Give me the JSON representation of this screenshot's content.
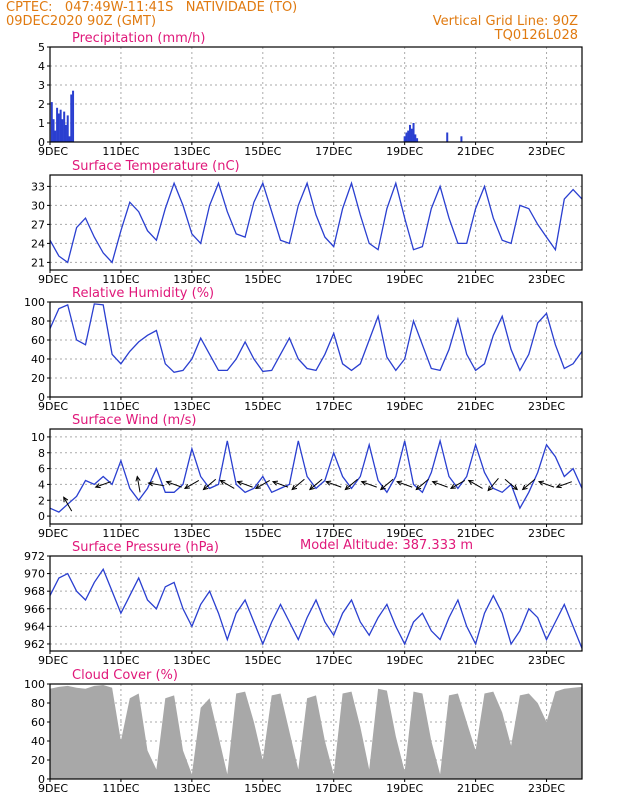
{
  "header": {
    "line1": "CPTEC:   047:49W-11:41S   NATIVIDADE (TO)",
    "line2": "09DEC2020 90Z (GMT)",
    "grid_note": "Vertical Grid Line: 90Z",
    "code": "TQ0126L028",
    "model_altitude": "Model Altitude: 387.333 m",
    "header_color": "#e07a10",
    "title_color": "#e0187a",
    "line_color": "#2a3fd0",
    "bar_color": "#2a3fd0",
    "cloud_color": "#a8a8a8"
  },
  "date_labels": [
    "9DEC",
    "11DEC",
    "13DEC",
    "15DEC",
    "17DEC",
    "19DEC",
    "21DEC",
    "23DEC"
  ],
  "chart_data": [
    {
      "id": "precipitation",
      "type": "bar",
      "title": "Precipitation (mm/h)",
      "ylim": [
        0,
        5
      ],
      "yticks": [
        0,
        1,
        2,
        3,
        4,
        5
      ],
      "xlabel": "",
      "ylabel": "",
      "grid": true,
      "points": [
        [
          0.05,
          2.1
        ],
        [
          0.1,
          1.2
        ],
        [
          0.15,
          0.6
        ],
        [
          0.2,
          1.8
        ],
        [
          0.25,
          1.5
        ],
        [
          0.3,
          1.7
        ],
        [
          0.35,
          1.2
        ],
        [
          0.4,
          1.6
        ],
        [
          0.45,
          0.9
        ],
        [
          0.5,
          1.4
        ],
        [
          0.55,
          0.3
        ],
        [
          0.6,
          2.5
        ],
        [
          0.65,
          2.7
        ],
        [
          10.0,
          0.3
        ],
        [
          10.05,
          0.5
        ],
        [
          10.1,
          0.6
        ],
        [
          10.15,
          0.9
        ],
        [
          10.2,
          0.7
        ],
        [
          10.25,
          1.0
        ],
        [
          10.3,
          0.4
        ],
        [
          10.35,
          0.2
        ],
        [
          11.2,
          0.5
        ],
        [
          11.6,
          0.3
        ]
      ]
    },
    {
      "id": "temperature",
      "type": "line",
      "title": "Surface Temperature (nC)",
      "ylim": [
        19.8,
        34.8
      ],
      "yticks": [
        21,
        24,
        27,
        30,
        33
      ],
      "xlabel": "",
      "ylabel": "",
      "grid": true,
      "x": [
        0.0,
        0.25,
        0.5,
        0.75,
        1.0,
        1.25,
        1.5,
        1.75,
        2.0,
        2.25,
        2.5,
        2.75,
        3.0,
        3.25,
        3.5,
        3.75,
        4.0,
        4.25,
        4.5,
        4.75,
        5.0,
        5.25,
        5.5,
        5.75,
        6.0,
        6.25,
        6.5,
        6.75,
        7.0,
        7.25,
        7.5,
        7.75,
        8.0,
        8.25,
        8.5,
        8.75,
        9.0,
        9.25,
        9.5,
        9.75,
        10.0,
        10.25,
        10.5,
        10.75,
        11.0,
        11.25,
        11.5,
        11.75,
        12.0,
        12.25,
        12.5,
        12.75,
        13.0,
        13.25,
        13.5,
        13.75,
        14.0,
        14.25,
        14.5,
        14.75,
        15.0
      ],
      "series": [
        {
          "values": [
            24.5,
            22.0,
            21.0,
            26.5,
            28.0,
            25.0,
            22.5,
            21.0,
            26.0,
            30.5,
            29.0,
            26.0,
            24.5,
            29.5,
            33.5,
            30.0,
            25.5,
            24.0,
            30.0,
            33.5,
            29.0,
            25.5,
            25.0,
            30.5,
            33.5,
            29.0,
            24.5,
            24.0,
            30.0,
            33.5,
            28.5,
            25.0,
            23.5,
            29.5,
            33.5,
            28.5,
            24.0,
            23.0,
            29.5,
            33.5,
            28.0,
            23.0,
            23.5,
            29.5,
            33.0,
            28.0,
            24.0,
            24.0,
            29.5,
            33.0,
            28.0,
            24.5,
            24.0,
            30.0,
            29.5,
            27.0,
            25.0,
            23.0,
            31.0,
            32.5,
            31.0
          ]
        }
      ]
    },
    {
      "id": "humidity",
      "type": "line",
      "title": "Relative Humidity (%)",
      "ylim": [
        0,
        100
      ],
      "yticks": [
        0,
        20,
        40,
        60,
        80,
        100
      ],
      "xlabel": "",
      "ylabel": "",
      "grid": true,
      "x": [
        0.0,
        0.25,
        0.5,
        0.75,
        1.0,
        1.25,
        1.5,
        1.75,
        2.0,
        2.25,
        2.5,
        2.75,
        3.0,
        3.25,
        3.5,
        3.75,
        4.0,
        4.25,
        4.5,
        4.75,
        5.0,
        5.25,
        5.5,
        5.75,
        6.0,
        6.25,
        6.5,
        6.75,
        7.0,
        7.25,
        7.5,
        7.75,
        8.0,
        8.25,
        8.5,
        8.75,
        9.0,
        9.25,
        9.5,
        9.75,
        10.0,
        10.25,
        10.5,
        10.75,
        11.0,
        11.25,
        11.5,
        11.75,
        12.0,
        12.25,
        12.5,
        12.75,
        13.0,
        13.25,
        13.5,
        13.75,
        14.0,
        14.25,
        14.5,
        14.75,
        15.0
      ],
      "series": [
        {
          "values": [
            72.0,
            93.0,
            97.0,
            60.0,
            55.0,
            98.0,
            97.0,
            45.0,
            35.0,
            48.0,
            58.0,
            65.0,
            70.0,
            35.0,
            26.0,
            28.0,
            40.0,
            62.0,
            45.0,
            28.0,
            28.0,
            40.0,
            58.0,
            40.0,
            27.0,
            28.0,
            45.0,
            62.0,
            40.0,
            30.0,
            28.0,
            45.0,
            67.0,
            35.0,
            28.0,
            35.0,
            60.0,
            85.0,
            42.0,
            28.0,
            40.0,
            80.0,
            55.0,
            30.0,
            28.0,
            50.0,
            82.0,
            45.0,
            28.0,
            35.0,
            65.0,
            85.0,
            50.0,
            28.0,
            45.0,
            78.0,
            88.0,
            55.0,
            30.0,
            35.0,
            48.0
          ]
        }
      ]
    },
    {
      "id": "wind",
      "type": "line",
      "title": "Surface Wind (m/s)",
      "ylim": [
        -1,
        11
      ],
      "yticks": [
        0,
        2,
        4,
        6,
        8,
        10
      ],
      "xlabel": "",
      "ylabel": "",
      "grid": true,
      "x": [
        0.0,
        0.25,
        0.5,
        0.75,
        1.0,
        1.25,
        1.5,
        1.75,
        2.0,
        2.25,
        2.5,
        2.75,
        3.0,
        3.25,
        3.5,
        3.75,
        4.0,
        4.25,
        4.5,
        4.75,
        5.0,
        5.25,
        5.5,
        5.75,
        6.0,
        6.25,
        6.5,
        6.75,
        7.0,
        7.25,
        7.5,
        7.75,
        8.0,
        8.25,
        8.5,
        8.75,
        9.0,
        9.25,
        9.5,
        9.75,
        10.0,
        10.25,
        10.5,
        10.75,
        11.0,
        11.25,
        11.5,
        11.75,
        12.0,
        12.25,
        12.5,
        12.75,
        13.0,
        13.25,
        13.5,
        13.75,
        14.0,
        14.25,
        14.5,
        14.75,
        15.0
      ],
      "series": [
        {
          "values": [
            1.0,
            0.5,
            1.5,
            2.5,
            4.5,
            4.0,
            5.0,
            4.0,
            7.0,
            3.5,
            2.0,
            3.5,
            6.0,
            3.0,
            3.0,
            4.0,
            8.5,
            5.0,
            3.5,
            4.0,
            9.5,
            4.0,
            3.0,
            3.5,
            5.0,
            3.0,
            3.5,
            4.0,
            9.5,
            5.0,
            3.5,
            4.5,
            8.0,
            5.0,
            3.5,
            5.0,
            9.0,
            4.5,
            3.0,
            5.0,
            9.5,
            4.0,
            3.0,
            5.5,
            9.5,
            5.0,
            3.5,
            5.0,
            9.0,
            5.5,
            3.5,
            3.0,
            4.0,
            1.0,
            3.0,
            5.5,
            9.0,
            7.5,
            5.0,
            6.0,
            3.5
          ]
        }
      ],
      "arrows": [
        {
          "day": 0.5,
          "speed": 1.5,
          "to_deg": 330
        },
        {
          "day": 1.5,
          "speed": 4.0,
          "to_deg": 250
        },
        {
          "day": 2.5,
          "speed": 4.0,
          "to_deg": 350
        },
        {
          "day": 3.0,
          "speed": 4.0,
          "to_deg": 280
        },
        {
          "day": 3.5,
          "speed": 4.0,
          "to_deg": 290
        },
        {
          "day": 4.0,
          "speed": 4.0,
          "to_deg": 240
        },
        {
          "day": 4.5,
          "speed": 4.0,
          "to_deg": 230
        },
        {
          "day": 5.0,
          "speed": 4.0,
          "to_deg": 300
        },
        {
          "day": 5.5,
          "speed": 4.0,
          "to_deg": 290
        },
        {
          "day": 6.0,
          "speed": 4.0,
          "to_deg": 240
        },
        {
          "day": 6.5,
          "speed": 4.0,
          "to_deg": 290
        },
        {
          "day": 7.0,
          "speed": 4.0,
          "to_deg": 230
        },
        {
          "day": 7.5,
          "speed": 4.0,
          "to_deg": 230
        },
        {
          "day": 8.0,
          "speed": 4.0,
          "to_deg": 290
        },
        {
          "day": 8.5,
          "speed": 4.0,
          "to_deg": 230
        },
        {
          "day": 9.0,
          "speed": 4.0,
          "to_deg": 290
        },
        {
          "day": 9.5,
          "speed": 4.0,
          "to_deg": 230
        },
        {
          "day": 10.0,
          "speed": 4.0,
          "to_deg": 290
        },
        {
          "day": 10.5,
          "speed": 4.0,
          "to_deg": 230
        },
        {
          "day": 11.0,
          "speed": 4.0,
          "to_deg": 290
        },
        {
          "day": 11.5,
          "speed": 4.0,
          "to_deg": 240
        },
        {
          "day": 12.0,
          "speed": 4.0,
          "to_deg": 300
        },
        {
          "day": 12.5,
          "speed": 4.0,
          "to_deg": 220
        },
        {
          "day": 13.0,
          "speed": 4.0,
          "to_deg": 130
        },
        {
          "day": 13.5,
          "speed": 4.0,
          "to_deg": 230
        },
        {
          "day": 14.0,
          "speed": 4.0,
          "to_deg": 290
        },
        {
          "day": 14.5,
          "speed": 4.0,
          "to_deg": 250
        }
      ]
    },
    {
      "id": "pressure",
      "type": "line",
      "title": "Surface Pressure (hPa)",
      "ylim": [
        961.2,
        972
      ],
      "yticks": [
        962,
        964,
        966,
        968,
        970,
        972
      ],
      "xlabel": "",
      "ylabel": "",
      "grid": true,
      "x": [
        0.0,
        0.25,
        0.5,
        0.75,
        1.0,
        1.25,
        1.5,
        1.75,
        2.0,
        2.25,
        2.5,
        2.75,
        3.0,
        3.25,
        3.5,
        3.75,
        4.0,
        4.25,
        4.5,
        4.75,
        5.0,
        5.25,
        5.5,
        5.75,
        6.0,
        6.25,
        6.5,
        6.75,
        7.0,
        7.25,
        7.5,
        7.75,
        8.0,
        8.25,
        8.5,
        8.75,
        9.0,
        9.25,
        9.5,
        9.75,
        10.0,
        10.25,
        10.5,
        10.75,
        11.0,
        11.25,
        11.5,
        11.75,
        12.0,
        12.25,
        12.5,
        12.75,
        13.0,
        13.25,
        13.5,
        13.75,
        14.0,
        14.25,
        14.5,
        14.75,
        15.0
      ],
      "series": [
        {
          "values": [
            967.5,
            969.5,
            970.0,
            968.0,
            967.0,
            969.0,
            970.5,
            968.0,
            965.5,
            967.5,
            969.5,
            967.0,
            966.0,
            968.5,
            969.0,
            966.0,
            964.0,
            966.5,
            968.0,
            965.5,
            962.5,
            965.5,
            967.0,
            964.5,
            962.0,
            964.5,
            966.5,
            964.5,
            962.5,
            965.0,
            967.0,
            964.5,
            963.0,
            965.5,
            967.0,
            964.5,
            963.0,
            965.0,
            966.5,
            964.0,
            962.0,
            964.5,
            965.5,
            963.5,
            962.5,
            965.0,
            967.0,
            964.0,
            962.0,
            965.5,
            967.5,
            965.5,
            962.0,
            963.5,
            966.0,
            965.0,
            962.5,
            964.5,
            966.5,
            964.0,
            961.5
          ]
        }
      ]
    },
    {
      "id": "cloud",
      "type": "area",
      "title": "Cloud Cover (%)",
      "ylim": [
        0,
        100
      ],
      "yticks": [
        0,
        20,
        40,
        60,
        80,
        100
      ],
      "xlabel": "",
      "ylabel": "",
      "grid": true,
      "x": [
        0.0,
        0.25,
        0.5,
        0.75,
        1.0,
        1.25,
        1.5,
        1.75,
        2.0,
        2.25,
        2.5,
        2.75,
        3.0,
        3.25,
        3.5,
        3.75,
        4.0,
        4.25,
        4.5,
        4.75,
        5.0,
        5.25,
        5.5,
        5.75,
        6.0,
        6.25,
        6.5,
        6.75,
        7.0,
        7.25,
        7.5,
        7.75,
        8.0,
        8.25,
        8.5,
        8.75,
        9.0,
        9.25,
        9.5,
        9.75,
        10.0,
        10.25,
        10.5,
        10.75,
        11.0,
        11.25,
        11.5,
        11.75,
        12.0,
        12.25,
        12.5,
        12.75,
        13.0,
        13.25,
        13.5,
        13.75,
        14.0,
        14.25,
        14.5,
        14.75,
        15.0
      ],
      "series": [
        {
          "values": [
            95,
            97,
            98,
            96,
            95,
            98,
            99,
            96,
            40,
            85,
            90,
            30,
            10,
            85,
            88,
            30,
            5,
            75,
            85,
            45,
            5,
            90,
            92,
            60,
            20,
            88,
            90,
            50,
            10,
            85,
            88,
            40,
            5,
            90,
            92,
            55,
            10,
            95,
            93,
            45,
            8,
            92,
            90,
            40,
            5,
            88,
            90,
            60,
            30,
            90,
            92,
            70,
            35,
            88,
            90,
            80,
            60,
            92,
            95,
            96,
            97
          ]
        }
      ]
    }
  ]
}
